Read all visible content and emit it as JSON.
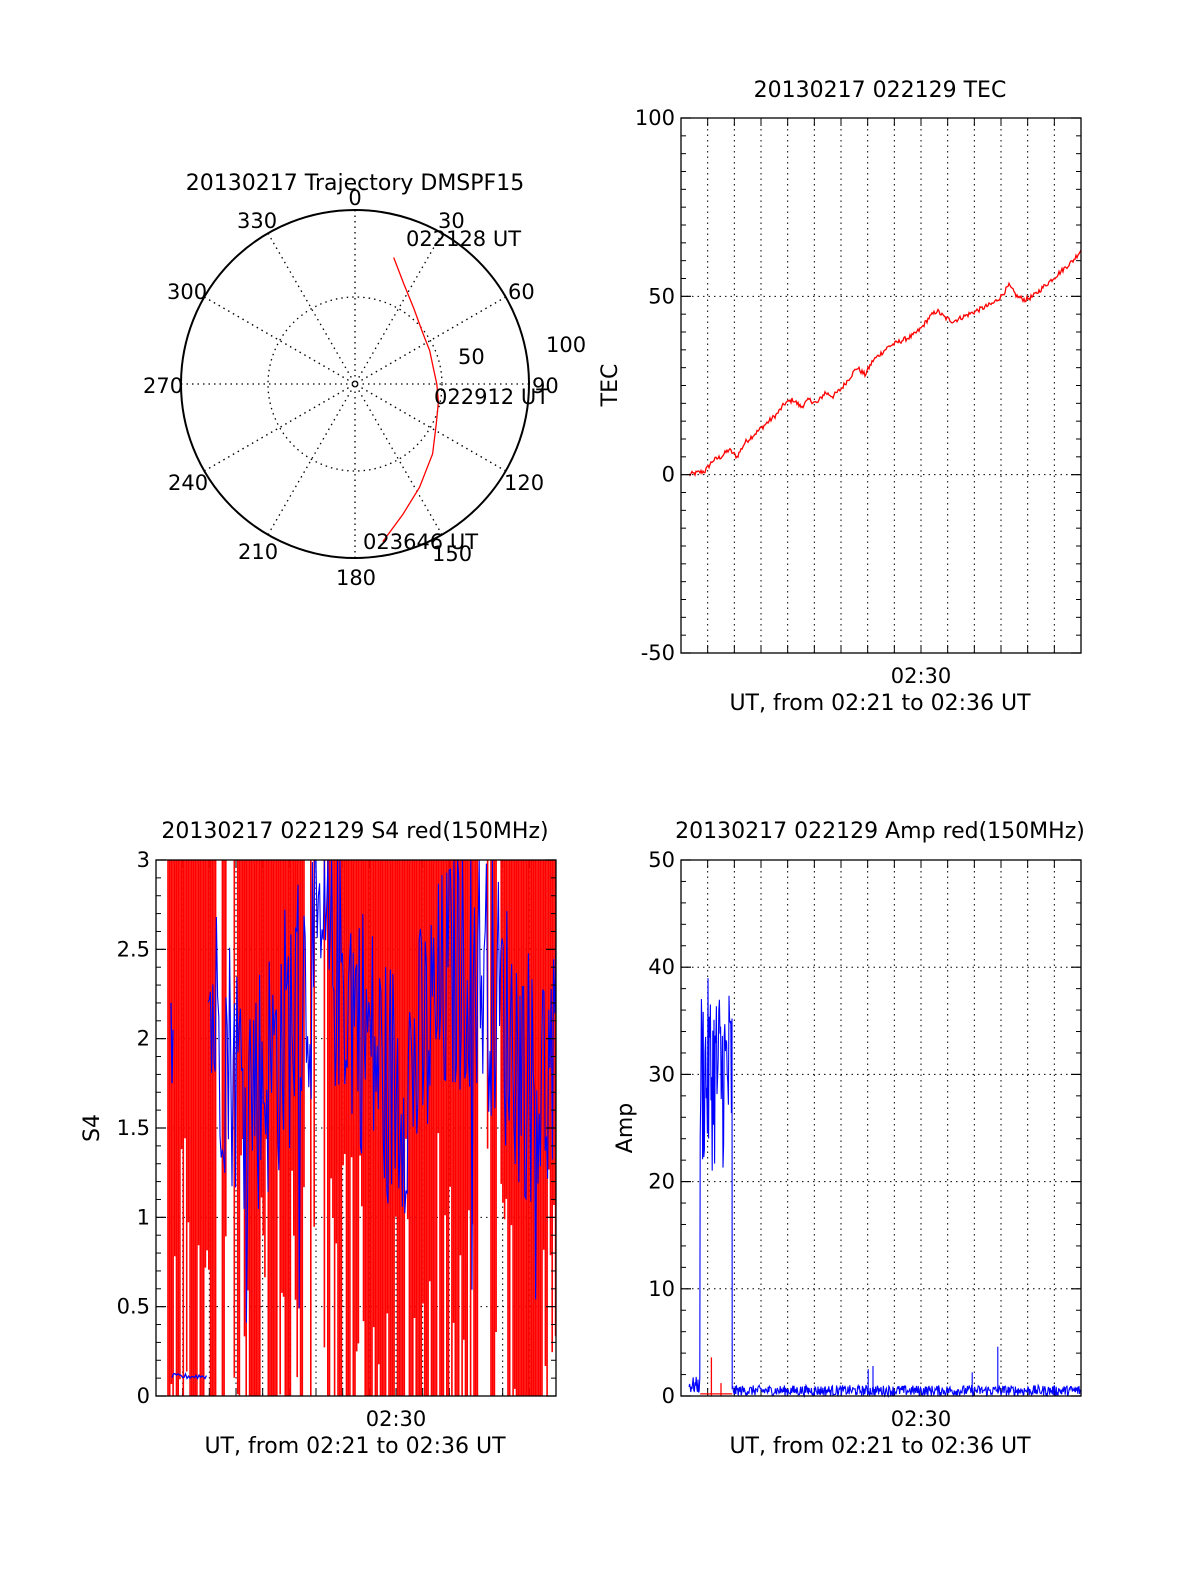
{
  "colors": {
    "primary": "#ff0000",
    "secondary": "#0000ff",
    "grid": "#000000"
  },
  "chart_data": [
    {
      "type": "polar",
      "title": "20130217 Trajectory DMSPF15",
      "angle_ticks": [
        "0",
        "30",
        "60",
        "90",
        "120",
        "150",
        "180",
        "210",
        "240",
        "270",
        "300",
        "330"
      ],
      "radius_ticks": [
        "50",
        "100"
      ],
      "rlim": [
        0,
        100
      ],
      "annotations": [
        {
          "text": "022128 UT",
          "az": 20,
          "r": 76
        },
        {
          "text": "022912 UT",
          "az": 90,
          "r": 47
        },
        {
          "text": "023646 UT",
          "az": 170,
          "r": 92
        }
      ],
      "trajectory": {
        "color": "#ff0000",
        "points": [
          [
            17,
            76
          ],
          [
            26,
            64
          ],
          [
            38,
            55
          ],
          [
            52,
            49
          ],
          [
            66,
            47
          ],
          [
            80,
            46
          ],
          [
            90,
            47
          ],
          [
            102,
            49
          ],
          [
            116,
            52
          ],
          [
            132,
            60
          ],
          [
            148,
            70
          ],
          [
            160,
            80
          ],
          [
            170,
            92
          ]
        ]
      }
    },
    {
      "type": "line",
      "title": "20130217 022129 TEC",
      "ylabel": "TEC",
      "xlabel": "UT, from 02:21 to 02:36 UT",
      "ylim": [
        -50,
        100
      ],
      "y_ticks": [
        -50,
        0,
        50,
        100
      ],
      "xlim": [
        2.35,
        2.6
      ],
      "x_ticks": [
        {
          "value": 2.5,
          "label": "02:30"
        }
      ],
      "series": [
        {
          "color": "#ff0000",
          "x": [
            2.355,
            2.36,
            2.365,
            2.37,
            2.375,
            2.38,
            2.385,
            2.39,
            2.395,
            2.4,
            2.405,
            2.41,
            2.415,
            2.42,
            2.425,
            2.43,
            2.435,
            2.44,
            2.445,
            2.45,
            2.455,
            2.46,
            2.465,
            2.47,
            2.475,
            2.48,
            2.485,
            2.49,
            2.495,
            2.5,
            2.505,
            2.51,
            2.515,
            2.52,
            2.525,
            2.53,
            2.535,
            2.54,
            2.545,
            2.55,
            2.555,
            2.56,
            2.565,
            2.57,
            2.575,
            2.58,
            2.585,
            2.59,
            2.595,
            2.6
          ],
          "y": [
            0,
            0.5,
            1,
            4,
            5,
            7,
            5,
            9,
            11,
            13,
            15,
            17,
            20,
            21,
            19,
            21,
            20,
            23,
            22,
            24,
            27,
            30,
            28,
            32,
            34,
            36,
            37,
            38,
            39,
            41,
            44,
            46,
            44,
            43,
            44,
            45,
            46,
            47,
            48,
            50,
            53,
            50,
            49,
            50,
            52,
            54,
            56,
            58,
            60,
            63
          ]
        }
      ]
    },
    {
      "type": "line",
      "title": "20130217 022129 S4 red(150MHz)",
      "ylabel": "S4",
      "xlabel": "UT, from 02:21 to 02:36 UT",
      "ylim": [
        0,
        3
      ],
      "y_ticks": [
        "0",
        "0.5",
        "1",
        "1.5",
        "2",
        "2.5",
        "3"
      ],
      "xlim": [
        2.35,
        2.6
      ],
      "x_ticks": [
        {
          "value": 2.5,
          "label": "02:30"
        }
      ],
      "series": [
        {
          "color": "#ff0000",
          "style": "dense-spikes",
          "range": [
            0,
            3
          ]
        },
        {
          "color": "#0000ff",
          "style": "noisy",
          "x_start": 2.375,
          "baseline": 2.1,
          "early_level": 0.11
        }
      ]
    },
    {
      "type": "line",
      "title": "20130217 022129 Amp red(150MHz)",
      "ylabel": "Amp",
      "xlabel": "UT, from 02:21 to 02:36 UT",
      "ylim": [
        0,
        50
      ],
      "y_ticks": [
        0,
        10,
        20,
        30,
        40,
        50
      ],
      "xlim": [
        2.35,
        2.6
      ],
      "x_ticks": [
        {
          "value": 2.5,
          "label": "02:30"
        }
      ],
      "series": [
        {
          "color": "#0000ff",
          "segments": [
            {
              "x": [
                2.355,
                2.362
              ],
              "level": 1.0,
              "noise": 0.8
            },
            {
              "x": [
                2.362,
                2.382
              ],
              "level": 30,
              "noise": 9,
              "max": 40.5,
              "min": 17
            },
            {
              "x": [
                2.382,
                2.6
              ],
              "level": 0.5,
              "noise": 0.5
            }
          ],
          "spikes": [
            [
              2.467,
              2.5
            ],
            [
              2.47,
              2.8
            ],
            [
              2.532,
              2.2
            ],
            [
              2.548,
              4.6
            ]
          ]
        },
        {
          "color": "#ff0000",
          "segments": [
            {
              "x": [
                2.362,
                2.382
              ],
              "level": 0.2
            }
          ],
          "spikes": [
            [
              2.369,
              3.6
            ],
            [
              2.375,
              1.2
            ]
          ]
        }
      ]
    }
  ]
}
